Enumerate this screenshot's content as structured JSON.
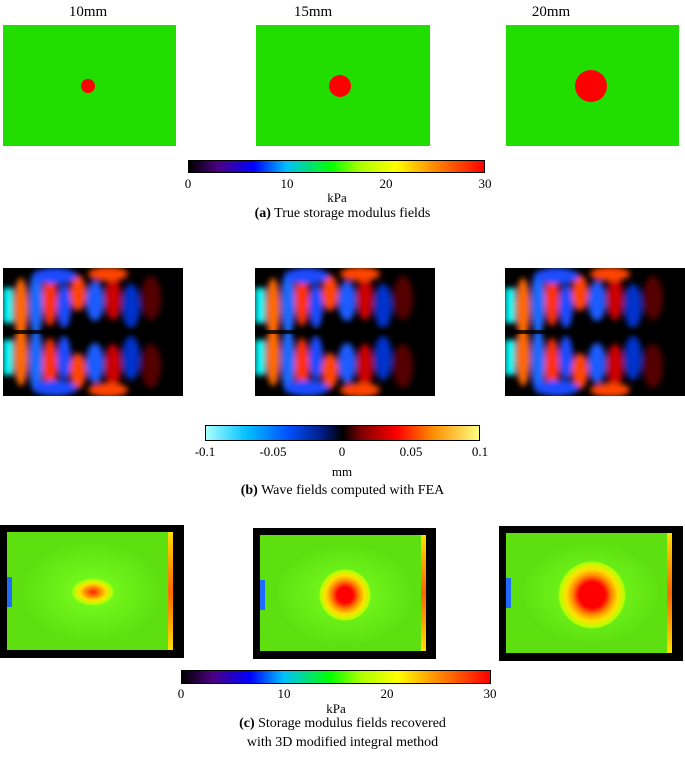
{
  "columns": [
    "10mm",
    "15mm",
    "20mm"
  ],
  "colorbar_a": {
    "ticks": [
      "0",
      "10",
      "20",
      "30"
    ],
    "unit": "kPa"
  },
  "caption_a": {
    "label": "(a)",
    "text": " True storage modulus fields"
  },
  "colorbar_b": {
    "ticks": [
      "-0.1",
      "-0.05",
      "0",
      "0.05",
      "0.1"
    ],
    "unit": "mm"
  },
  "caption_b": {
    "label": "(b)",
    "text": " Wave fields computed with FEA"
  },
  "colorbar_c": {
    "ticks": [
      "0",
      "10",
      "20",
      "30"
    ],
    "unit": "kPa"
  },
  "caption_c": {
    "label": "(c)",
    "text": " Storage modulus fields recovered",
    "line2": "with 3D modified integral method"
  },
  "colors": {
    "background_green": "#22dd00",
    "inclusion_red": "#ff0000",
    "frame": "#000000"
  }
}
